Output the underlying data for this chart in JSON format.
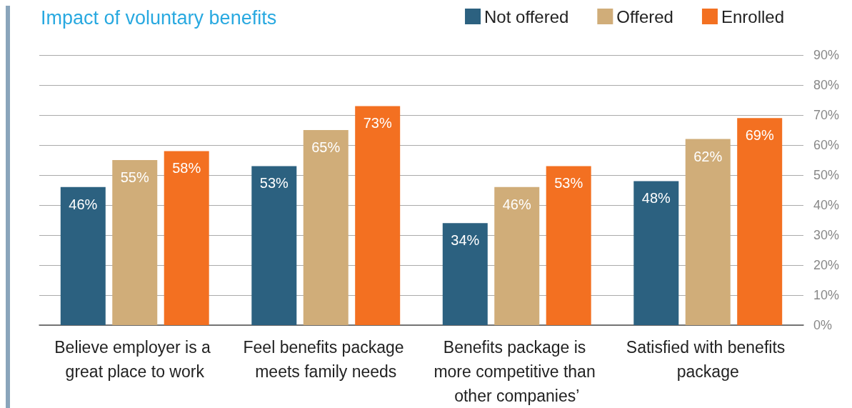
{
  "chart_data": {
    "type": "bar",
    "title": "Impact of voluntary benefits",
    "categories": [
      "Believe employer is a great place to work",
      "Feel benefits package meets family needs",
      "Benefits package is more competitive than other companies’",
      "Satisfied with benefits package"
    ],
    "series": [
      {
        "name": "Not offered",
        "color": "#2c6180",
        "values": [
          46,
          53,
          34,
          48
        ]
      },
      {
        "name": "Offered",
        "color": "#d0ad79",
        "values": [
          55,
          65,
          46,
          62
        ]
      },
      {
        "name": "Enrolled",
        "color": "#f37021",
        "values": [
          58,
          73,
          53,
          69
        ]
      }
    ],
    "ylim": [
      0,
      90
    ],
    "yticks": [
      {
        "value": 0,
        "label": "0%"
      },
      {
        "value": 10,
        "label": "10%"
      },
      {
        "value": 20,
        "label": "20%"
      },
      {
        "value": 30,
        "label": "30%"
      },
      {
        "value": 40,
        "label": "40%"
      },
      {
        "value": 50,
        "label": "50%"
      },
      {
        "value": 60,
        "label": "60%"
      },
      {
        "value": 70,
        "label": "70%"
      },
      {
        "value": 80,
        "label": "80%"
      },
      {
        "value": 90,
        "label": "90%"
      }
    ],
    "value_labels": [
      [
        "46%",
        "53%",
        "34%",
        "48%"
      ],
      [
        "55%",
        "65%",
        "46%",
        "62%"
      ],
      [
        "58%",
        "73%",
        "53%",
        "69%"
      ]
    ],
    "grid": "y",
    "legend": "top right"
  }
}
